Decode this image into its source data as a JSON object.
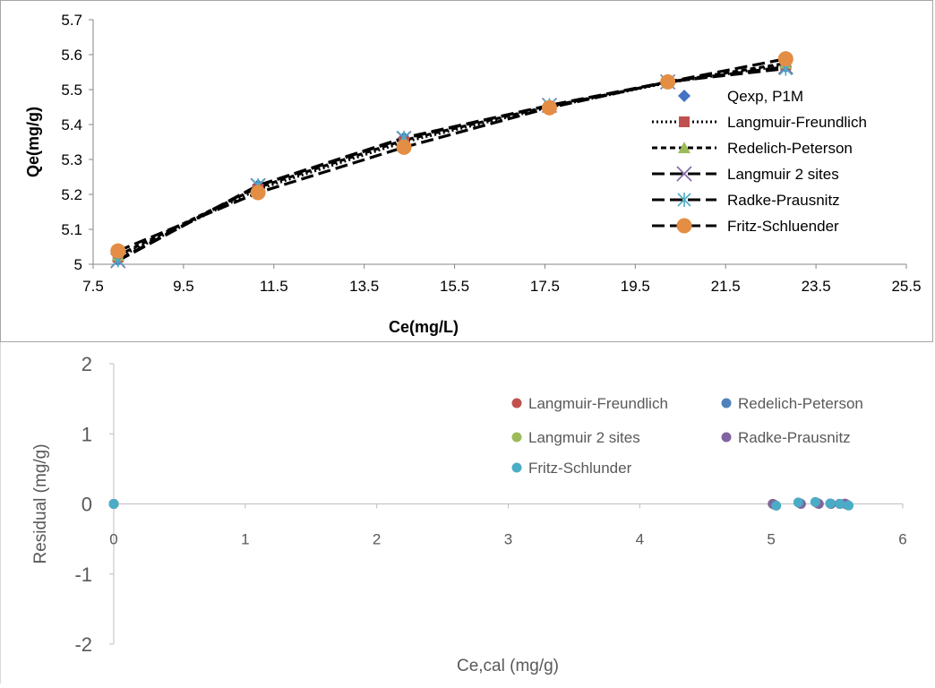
{
  "chart_data": [
    {
      "type": "line",
      "title": "",
      "xlabel": "Ce(mg/L)",
      "ylabel": "Qe(mg/g)",
      "xlim": [
        7.5,
        25.5
      ],
      "ylim": [
        5.0,
        5.7
      ],
      "x_ticks": [
        "7.5",
        "9.5",
        "11.5",
        "13.5",
        "15.5",
        "17.5",
        "19.5",
        "21.5",
        "23.5",
        "25.5"
      ],
      "y_ticks": [
        "5",
        "5.1",
        "5.2",
        "5.3",
        "5.4",
        "5.5",
        "5.6",
        "5.7"
      ],
      "grid": false,
      "legend_position": "right",
      "series": [
        {
          "name": "Qexp, P1M",
          "marker": "diamond",
          "color": "#4472C4",
          "line": "none",
          "x": [
            8.05,
            11.15,
            14.38,
            17.6,
            20.22,
            22.83
          ],
          "y": [
            5.012,
            5.226,
            5.362,
            5.455,
            5.522,
            5.565
          ]
        },
        {
          "name": "Langmuir-Freundlich",
          "marker": "square",
          "color": "#C0504D",
          "line": "dotted",
          "x": [
            8.05,
            11.15,
            14.38,
            17.6,
            20.22,
            22.83
          ],
          "y": [
            5.02,
            5.215,
            5.35,
            5.45,
            5.52,
            5.57
          ]
        },
        {
          "name": "Redelich-Peterson",
          "marker": "triangle",
          "color": "#9BBB59",
          "line": "dashed",
          "x": [
            8.05,
            11.15,
            14.38,
            17.6,
            20.22,
            22.83
          ],
          "y": [
            5.025,
            5.22,
            5.355,
            5.452,
            5.521,
            5.575
          ]
        },
        {
          "name": "Langmuir 2 sites",
          "marker": "x",
          "color": "#7F65A3",
          "line": "longdash",
          "x": [
            8.05,
            11.15,
            14.38,
            17.6,
            20.22,
            22.83
          ],
          "y": [
            5.01,
            5.225,
            5.36,
            5.455,
            5.522,
            5.565
          ]
        },
        {
          "name": "Radke-Prausnitz",
          "marker": "star",
          "color": "#4BACC6",
          "line": "longdash",
          "x": [
            8.05,
            11.15,
            14.38,
            17.6,
            20.22,
            22.83
          ],
          "y": [
            5.012,
            5.226,
            5.362,
            5.455,
            5.522,
            5.56
          ]
        },
        {
          "name": "Fritz-Schluender",
          "marker": "circle",
          "color": "#E38E44",
          "line": "longdash",
          "x": [
            8.05,
            11.15,
            14.38,
            17.6,
            20.22,
            22.83
          ],
          "y": [
            5.038,
            5.205,
            5.335,
            5.448,
            5.522,
            5.588
          ]
        }
      ]
    },
    {
      "type": "scatter",
      "title": "",
      "xlabel": "Ce,cal (mg/g)",
      "ylabel": "Residual (mg/g)",
      "xlim": [
        0,
        6
      ],
      "ylim": [
        -2,
        2
      ],
      "x_ticks": [
        "0",
        "1",
        "2",
        "3",
        "4",
        "5",
        "6"
      ],
      "y_ticks": [
        "2",
        "1",
        "0",
        "-1",
        "-2"
      ],
      "grid": false,
      "legend_position": "top-right",
      "series": [
        {
          "name": "Langmuir-Freundlich",
          "color": "#C0504D",
          "x": [
            0,
            5.02,
            5.215,
            5.35,
            5.45,
            5.52,
            5.57
          ],
          "y": [
            0,
            -0.008,
            0.011,
            0.012,
            0.005,
            0.002,
            -0.005
          ]
        },
        {
          "name": "Redelich-Peterson",
          "color": "#4F81BD",
          "x": [
            0,
            5.025,
            5.22,
            5.355,
            5.452,
            5.521,
            5.575
          ],
          "y": [
            0,
            -0.013,
            0.006,
            0.007,
            0.003,
            0.001,
            -0.01
          ]
        },
        {
          "name": "Langmuir 2 sites",
          "color": "#9BBB59",
          "x": [
            0,
            5.01,
            5.225,
            5.36,
            5.455,
            5.522,
            5.565
          ],
          "y": [
            0,
            0.002,
            0.001,
            0.002,
            0,
            0,
            0
          ]
        },
        {
          "name": "Radke-Prausnitz",
          "color": "#8064A2",
          "x": [
            0,
            5.012,
            5.226,
            5.362,
            5.455,
            5.522,
            5.56
          ],
          "y": [
            0,
            0,
            0,
            0,
            0,
            0,
            0.005
          ]
        },
        {
          "name": "Fritz-Schlunder",
          "color": "#4BACC6",
          "x": [
            0,
            5.038,
            5.205,
            5.335,
            5.448,
            5.522,
            5.588
          ],
          "y": [
            0,
            -0.026,
            0.021,
            0.027,
            0.007,
            0,
            -0.023
          ]
        }
      ]
    }
  ]
}
